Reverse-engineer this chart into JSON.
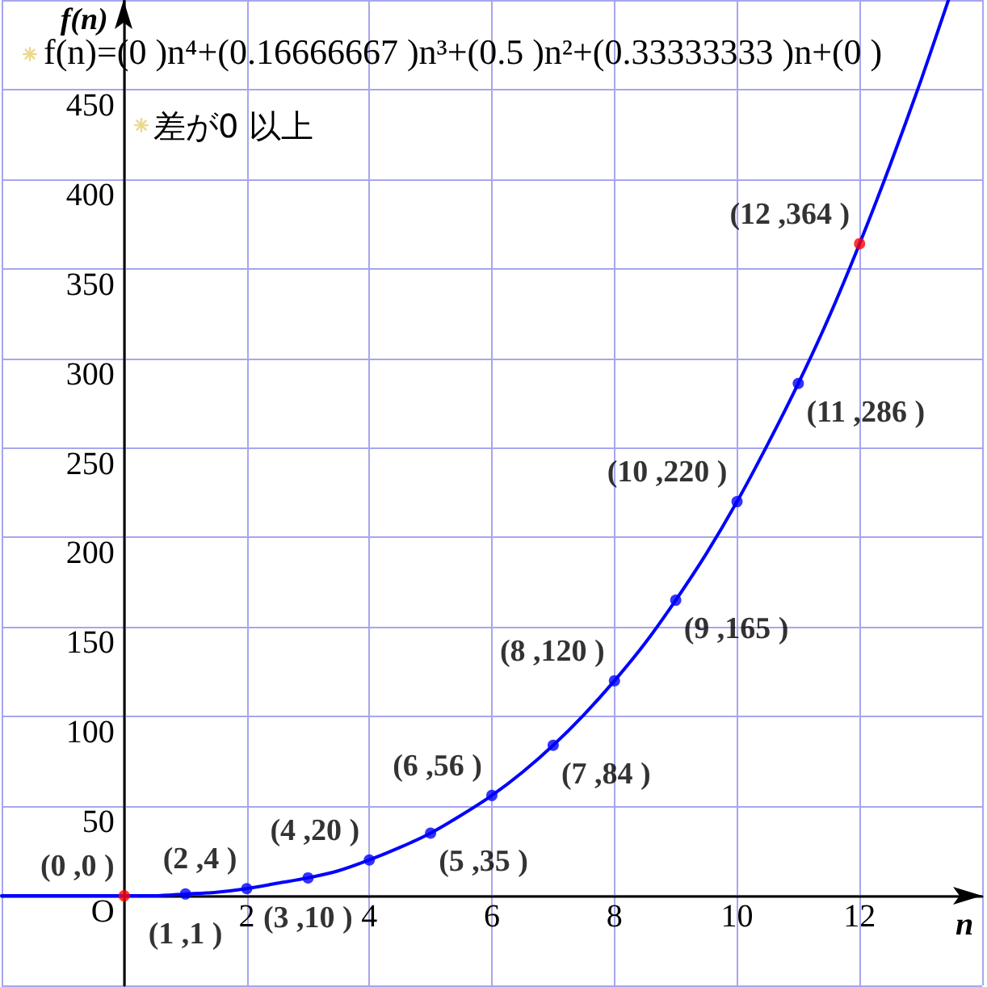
{
  "chart_data": {
    "type": "line",
    "title": "f(n)=(0 )n⁴+(0.16666667 )n³+(0.5 )n²+(0.33333333 )n+(0 )",
    "xlabel": "n",
    "ylabel": "f(n)",
    "annotations": [
      "差が0 以上"
    ],
    "xlim": [
      -2,
      14
    ],
    "ylim": [
      -50,
      500
    ],
    "xticks": [
      {
        "value": -2,
        "label": null
      },
      {
        "value": 0,
        "label": null
      },
      2,
      4,
      6,
      8,
      10,
      12,
      {
        "value": 14,
        "label": null
      }
    ],
    "yticks": [
      {
        "value": -50,
        "label": null
      },
      {
        "value": 0,
        "label": "O"
      },
      50,
      100,
      150,
      200,
      250,
      300,
      350,
      400,
      450,
      {
        "value": 500,
        "label": null
      }
    ],
    "grid": true,
    "series": [
      {
        "color": "#0000ff",
        "marker": "none",
        "x": [
          -2,
          -1,
          0,
          0.5,
          1,
          1.5,
          2,
          2.5,
          3,
          3.5,
          4,
          4.5,
          5,
          5.5,
          6,
          6.5,
          7,
          7.5,
          8,
          8.5,
          9,
          9.5,
          10,
          10.5,
          11,
          11.5,
          12,
          12.5,
          13,
          13.45
        ],
        "values": [
          0,
          0,
          0,
          0,
          1,
          2,
          4,
          7,
          10,
          14,
          20,
          27,
          35,
          45,
          56,
          69,
          84,
          101,
          120,
          141,
          165,
          191,
          220,
          252,
          286,
          323,
          364,
          408,
          455,
          500
        ]
      },
      {
        "type": "scatter",
        "marker": "circle",
        "colors": [
          "#ff0000",
          "#0000ff",
          "#0000ff",
          "#0000ff",
          "#0000ff",
          "#0000ff",
          "#0000ff",
          "#0000ff",
          "#0000ff",
          "#0000ff",
          "#0000ff",
          "#0000ff",
          "#ff0000"
        ],
        "x": [
          0,
          1,
          2,
          3,
          4,
          5,
          6,
          7,
          8,
          9,
          10,
          11,
          12
        ],
        "values": [
          0,
          1,
          4,
          10,
          20,
          35,
          56,
          84,
          120,
          165,
          220,
          286,
          364
        ],
        "value_labels": [
          "(0 ,0 )",
          "(1 ,1 )",
          "(2 ,4 )",
          "(3 ,10 )",
          "(4 ,20 )",
          "(5 ,35 )",
          "(6 ,56 )",
          "(7 ,84 )",
          "(8 ,120 )",
          "(9 ,165 )",
          "(10 ,220 )",
          "(11 ,286 )",
          "(12 ,364 )"
        ]
      }
    ]
  }
}
